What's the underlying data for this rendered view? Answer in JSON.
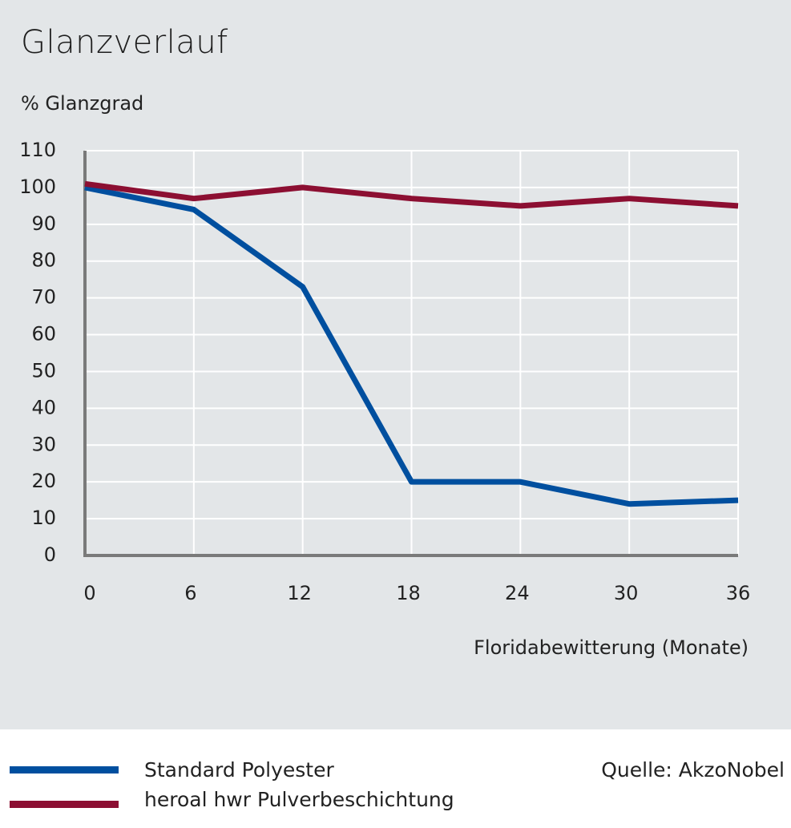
{
  "chart_data": {
    "type": "line",
    "title": "Glanzverlauf",
    "ylabel": "% Glanzgrad",
    "xlabel": "Floridabewitterung (Monate)",
    "x": [
      0,
      6,
      12,
      18,
      24,
      30,
      36
    ],
    "xticks": [
      "0",
      "6",
      "12",
      "18",
      "24",
      "30",
      "36"
    ],
    "yticks": [
      "0",
      "10",
      "20",
      "30",
      "40",
      "50",
      "60",
      "70",
      "80",
      "90",
      "100",
      "110"
    ],
    "ylim": [
      0,
      112
    ],
    "xlim": [
      0,
      36
    ],
    "grid": true,
    "series": [
      {
        "name": "Standard Polyester",
        "color": "#004f9f",
        "values": [
          100,
          94,
          73,
          20,
          20,
          14,
          15
        ]
      },
      {
        "name": "heroal hwr Pulverbeschichtung",
        "color": "#8c0f32",
        "values": [
          101,
          97,
          100,
          97,
          95,
          97,
          95
        ]
      }
    ],
    "source": "Quelle: AkzoNobel"
  }
}
